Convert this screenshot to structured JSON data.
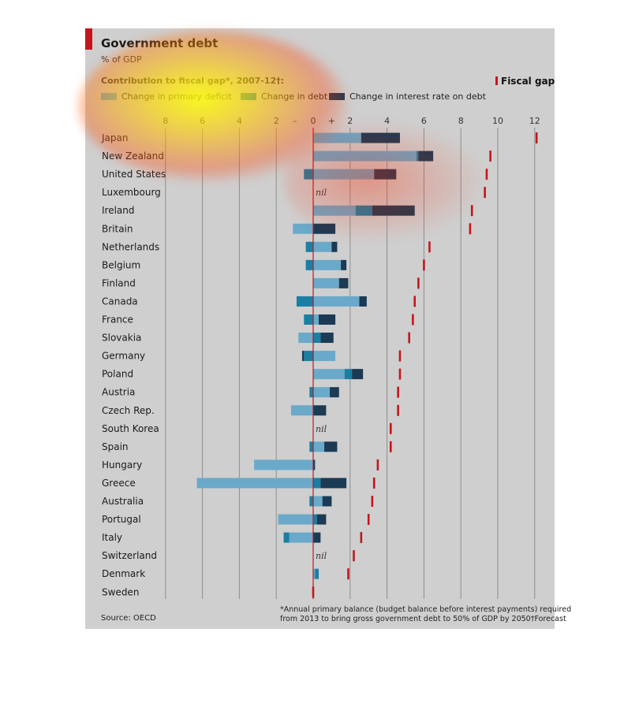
{
  "header": {
    "title": "Government debt",
    "subtitle": "% of GDP",
    "legend_title": "Contribution to fiscal gap*, 2007-12†:",
    "legend": [
      {
        "label": "Change in primary deficit",
        "color": "#6aa9c9"
      },
      {
        "label": "Change in debt",
        "color": "#1b7ea3"
      },
      {
        "label": "Change in interest rate on debt",
        "color": "#1b3a54"
      }
    ],
    "fiscal_gap_label": "Fiscal gap",
    "fiscal_gap_color": "#c4161c"
  },
  "footer": {
    "source": "Source: OECD",
    "footnote_line1": "*Annual primary balance (budget balance before interest payments) required",
    "footnote_line2": "from 2013 to bring gross government debt to 50% of GDP by 2050",
    "footnote_forecast": "†Forecast"
  },
  "chart_data": {
    "type": "bar",
    "orientation": "horizontal-stacked",
    "xlim": [
      -8,
      12
    ],
    "x_ticks": [
      "8",
      "6",
      "4",
      "2",
      "–",
      "0",
      "+",
      "2",
      "4",
      "6",
      "8",
      "10",
      "12"
    ],
    "nil_label": "nil",
    "categories": [
      "Japan",
      "New Zealand",
      "United States",
      "Luxembourg",
      "Ireland",
      "Britain",
      "Netherlands",
      "Belgium",
      "Finland",
      "Canada",
      "France",
      "Slovakia",
      "Germany",
      "Poland",
      "Austria",
      "Czech Rep.",
      "South Korea",
      "Spain",
      "Hungary",
      "Greece",
      "Australia",
      "Portugal",
      "Italy",
      "Switzerland",
      "Denmark",
      "Sweden"
    ],
    "series": [
      {
        "name": "Change in primary deficit",
        "values": [
          2.6,
          5.6,
          3.3,
          0,
          2.3,
          -1.1,
          1.0,
          1.5,
          1.4,
          2.5,
          0.3,
          -0.8,
          1.2,
          1.7,
          0.9,
          -1.2,
          0,
          0.6,
          -3.2,
          -6.3,
          0.5,
          -1.9,
          -1.3,
          0,
          0.1,
          0
        ]
      },
      {
        "name": "Change in debt",
        "values": [
          0,
          0.1,
          -0.5,
          0,
          0.9,
          0,
          -0.4,
          -0.4,
          0,
          -0.9,
          -0.5,
          0.4,
          -0.5,
          0.4,
          -0.2,
          0,
          0,
          -0.2,
          0,
          0.4,
          -0.2,
          0.2,
          -0.3,
          0,
          0.2,
          0
        ]
      },
      {
        "name": "Change in interest rate on debt",
        "values": [
          2.1,
          0.8,
          1.2,
          0,
          2.3,
          1.2,
          0.3,
          0.3,
          0.5,
          0.4,
          0.9,
          0.7,
          -0.1,
          0.6,
          0.5,
          0.7,
          0,
          0.7,
          0.1,
          1.4,
          0.5,
          0.5,
          0.4,
          0,
          0,
          0
        ]
      }
    ],
    "fiscal_gap": [
      12.1,
      9.6,
      9.4,
      9.3,
      8.6,
      8.5,
      6.3,
      6.0,
      5.7,
      5.5,
      5.4,
      5.2,
      4.7,
      4.7,
      4.6,
      4.6,
      4.2,
      4.2,
      3.5,
      3.3,
      3.2,
      3.0,
      2.6,
      2.2,
      1.9,
      0
    ],
    "nil": [
      false,
      false,
      false,
      true,
      false,
      false,
      false,
      false,
      false,
      false,
      false,
      false,
      false,
      false,
      false,
      false,
      true,
      false,
      false,
      false,
      false,
      false,
      false,
      true,
      false,
      false
    ]
  }
}
